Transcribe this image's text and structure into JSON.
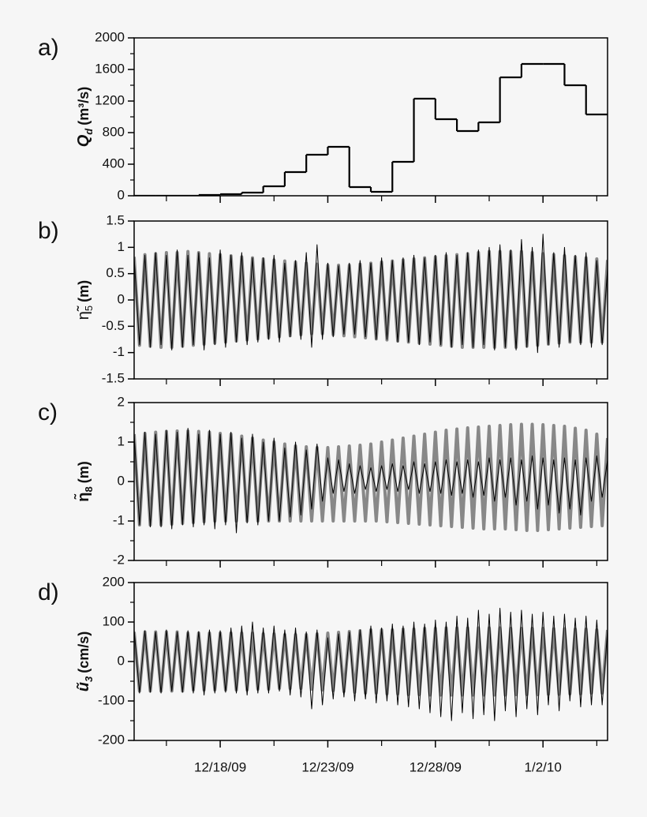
{
  "chart_data": [
    {
      "type": "step",
      "panel_label": "a)",
      "ylabel": {
        "symbol": "Q",
        "sub": "d",
        "unit": "(m³/s)"
      },
      "x": [
        0,
        1,
        2,
        3,
        4,
        5,
        6,
        7,
        8,
        9,
        10,
        11,
        12,
        13,
        14,
        15,
        16,
        17,
        18,
        19,
        20,
        21
      ],
      "values": [
        0,
        0,
        0,
        10,
        20,
        40,
        120,
        300,
        520,
        620,
        110,
        50,
        430,
        1230,
        970,
        820,
        930,
        1500,
        1670,
        1670,
        1400,
        1030
      ],
      "color": "#000000",
      "xlim": [
        0,
        22
      ],
      "xticks": [
        4,
        9,
        14,
        19
      ],
      "xminorticks": [
        1.5,
        6.5,
        11.5,
        16.5,
        21.5
      ],
      "ylim": [
        0,
        2000
      ],
      "yticks": [
        0,
        400,
        800,
        1200,
        1600,
        2000
      ],
      "yminorticks": [
        200,
        600,
        1000,
        1400,
        1800
      ]
    },
    {
      "type": "line",
      "panel_label": "b)",
      "ylabel": {
        "symbol": "η̃",
        "sub": "5",
        "unit": "(m)"
      },
      "x": [
        0,
        0.25,
        0.5,
        0.75,
        1,
        1.25,
        1.5,
        1.75,
        2,
        2.25,
        2.5,
        2.75,
        3,
        3.25,
        3.5,
        3.75,
        4,
        4.25,
        4.5,
        4.75,
        5,
        5.25,
        5.5,
        5.75,
        6,
        6.25,
        6.5,
        6.75,
        7,
        7.25,
        7.5,
        7.75,
        8,
        8.25,
        8.5,
        8.75,
        9,
        9.25,
        9.5,
        9.75,
        10,
        10.25,
        10.5,
        10.75,
        11,
        11.25,
        11.5,
        11.75,
        12,
        12.25,
        12.5,
        12.75,
        13,
        13.25,
        13.5,
        13.75,
        14,
        14.25,
        14.5,
        14.75,
        15,
        15.25,
        15.5,
        15.75,
        16,
        16.25,
        16.5,
        16.75,
        17,
        17.25,
        17.5,
        17.75,
        18,
        18.25,
        18.5,
        18.75,
        19,
        19.25,
        19.5,
        19.75,
        20,
        20.25,
        20.5,
        20.75,
        21,
        21.25,
        21.5,
        21.75,
        22
      ],
      "series": [
        {
          "color": "#888888",
          "width": 4,
          "values": [
            0.82,
            -0.86,
            0.86,
            -0.88,
            0.88,
            -0.9,
            0.9,
            -0.9,
            0.9,
            -0.88,
            0.92,
            -0.86,
            0.9,
            -0.84,
            0.88,
            -0.82,
            0.86,
            -0.8,
            0.84,
            -0.78,
            0.82,
            -0.76,
            0.8,
            -0.74,
            0.78,
            -0.72,
            0.76,
            -0.7,
            0.74,
            -0.68,
            0.72,
            -0.66,
            0.7,
            -0.64,
            0.68,
            -0.64,
            0.66,
            -0.66,
            0.66,
            -0.68,
            0.66,
            -0.7,
            0.68,
            -0.72,
            0.7,
            -0.74,
            0.72,
            -0.76,
            0.74,
            -0.78,
            0.76,
            -0.8,
            0.78,
            -0.82,
            0.8,
            -0.84,
            0.82,
            -0.86,
            0.84,
            -0.88,
            0.86,
            -0.9,
            0.88,
            -0.9,
            0.9,
            -0.9,
            0.92,
            -0.9,
            0.92,
            -0.9,
            0.92,
            -0.9,
            0.92,
            -0.88,
            0.9,
            -0.86,
            0.88,
            -0.84,
            0.86,
            -0.82,
            0.84,
            -0.8,
            0.82,
            -0.8,
            0.8,
            -0.8,
            0.78,
            -0.8,
            0.76
          ]
        },
        {
          "color": "#000000",
          "width": 1,
          "values": [
            0.8,
            -0.85,
            0.85,
            -0.9,
            0.9,
            -0.85,
            0.85,
            -0.95,
            0.95,
            -0.9,
            0.85,
            -0.85,
            0.9,
            -0.95,
            0.8,
            -0.85,
            0.95,
            -0.9,
            0.85,
            -0.8,
            0.9,
            -0.85,
            0.8,
            -0.8,
            0.8,
            -0.75,
            0.85,
            -0.8,
            0.7,
            -0.7,
            0.75,
            -0.75,
            0.9,
            -0.9,
            1.05,
            -0.75,
            0.7,
            -0.7,
            0.65,
            -0.65,
            0.7,
            -0.65,
            0.75,
            -0.7,
            0.7,
            -0.75,
            0.8,
            -0.75,
            0.75,
            -0.8,
            0.8,
            -0.8,
            0.85,
            -0.85,
            0.8,
            -0.8,
            0.85,
            -0.85,
            0.9,
            -0.9,
            0.85,
            -0.85,
            0.9,
            -0.9,
            0.95,
            -0.85,
            1.0,
            -0.95,
            1.05,
            -0.9,
            0.95,
            -0.95,
            1.15,
            -0.9,
            1.0,
            -1.0,
            1.25,
            -0.85,
            0.9,
            -0.9,
            1.0,
            -0.8,
            0.85,
            -0.85,
            0.9,
            -0.9,
            0.75,
            -0.85,
            0.6
          ]
        }
      ],
      "xlim": [
        0,
        22
      ],
      "xticks": [
        4,
        9,
        14,
        19
      ],
      "xminorticks": [
        1.5,
        6.5,
        11.5,
        16.5,
        21.5
      ],
      "ylim": [
        -1.5,
        1.5
      ],
      "yticks": [
        -1.5,
        -1,
        -0.5,
        0,
        0.5,
        1,
        1.5
      ],
      "yminorticks": []
    },
    {
      "type": "line",
      "panel_label": "c)",
      "ylabel": {
        "symbol": "η̃",
        "sub": "8",
        "unit": "(m)"
      },
      "x": [
        0,
        0.25,
        0.5,
        0.75,
        1,
        1.25,
        1.5,
        1.75,
        2,
        2.25,
        2.5,
        2.75,
        3,
        3.25,
        3.5,
        3.75,
        4,
        4.25,
        4.5,
        4.75,
        5,
        5.25,
        5.5,
        5.75,
        6,
        6.25,
        6.5,
        6.75,
        7,
        7.25,
        7.5,
        7.75,
        8,
        8.25,
        8.5,
        8.75,
        9,
        9.25,
        9.5,
        9.75,
        10,
        10.25,
        10.5,
        10.75,
        11,
        11.25,
        11.5,
        11.75,
        12,
        12.25,
        12.5,
        12.75,
        13,
        13.25,
        13.5,
        13.75,
        14,
        14.25,
        14.5,
        14.75,
        15,
        15.25,
        15.5,
        15.75,
        16,
        16.25,
        16.5,
        16.75,
        17,
        17.25,
        17.5,
        17.75,
        18,
        18.25,
        18.5,
        18.75,
        19,
        19.25,
        19.5,
        19.75,
        20,
        20.25,
        20.5,
        20.75,
        21,
        21.25,
        21.5,
        21.75,
        22
      ],
      "series": [
        {
          "color": "#888888",
          "width": 4,
          "values": [
            1.2,
            -1.1,
            1.22,
            -1.1,
            1.25,
            -1.1,
            1.27,
            -1.08,
            1.28,
            -1.06,
            1.28,
            -1.04,
            1.27,
            -1.02,
            1.25,
            -1,
            1.22,
            -1,
            1.2,
            -1,
            1.15,
            -1,
            1.1,
            -1,
            1.05,
            -1,
            1,
            -1,
            0.95,
            -1,
            0.9,
            -1,
            0.88,
            -1,
            0.86,
            -1,
            0.86,
            -1,
            0.88,
            -1,
            0.9,
            -1,
            0.92,
            -1,
            0.95,
            -1,
            1,
            -1.02,
            1.05,
            -1.04,
            1.1,
            -1.06,
            1.15,
            -1.08,
            1.2,
            -1.1,
            1.25,
            -1.12,
            1.3,
            -1.14,
            1.33,
            -1.16,
            1.36,
            -1.18,
            1.38,
            -1.2,
            1.4,
            -1.2,
            1.42,
            -1.2,
            1.44,
            -1.22,
            1.45,
            -1.24,
            1.45,
            -1.24,
            1.44,
            -1.22,
            1.42,
            -1.2,
            1.4,
            -1.18,
            1.35,
            -1.16,
            1.3,
            -1.14,
            1.2,
            -1.12,
            1.1
          ]
        },
        {
          "color": "#000000",
          "width": 1,
          "values": [
            1.2,
            -1.1,
            1.25,
            -1.15,
            1.2,
            -1.15,
            1.3,
            -1.2,
            1.25,
            -1.1,
            1.35,
            -1.15,
            1.2,
            -1.1,
            1.3,
            -1.2,
            1.2,
            -1.1,
            1.25,
            -1.3,
            1.1,
            -1.05,
            1.2,
            -1.1,
            1,
            -1,
            1.1,
            -1,
            0.85,
            -0.9,
            1,
            -0.85,
            0.8,
            -0.7,
            0.95,
            -0.5,
            0.6,
            -0.3,
            0.55,
            -0.25,
            0.45,
            -0.3,
            0.4,
            -0.2,
            0.35,
            -0.25,
            0.4,
            -0.2,
            0.45,
            -0.25,
            0.4,
            -0.2,
            0.5,
            -0.3,
            0.45,
            -0.25,
            0.5,
            -0.3,
            0.55,
            -0.35,
            0.5,
            -0.3,
            0.55,
            -0.4,
            0.5,
            -0.35,
            0.6,
            -0.5,
            0.55,
            -0.4,
            0.6,
            -0.6,
            0.55,
            -0.5,
            0.65,
            -0.7,
            0.6,
            -0.6,
            0.55,
            -0.8,
            0.6,
            -0.7,
            0.55,
            -0.85,
            0.6,
            -0.5,
            0.65,
            -0.4,
            0.55
          ]
        }
      ],
      "xlim": [
        0,
        22
      ],
      "xticks": [
        4,
        9,
        14,
        19
      ],
      "xminorticks": [
        1.5,
        6.5,
        11.5,
        16.5,
        21.5
      ],
      "ylim": [
        -2,
        2
      ],
      "yticks": [
        -2,
        -1,
        0,
        1,
        2
      ],
      "yminorticks": [
        -1.5,
        -0.5,
        0.5,
        1.5
      ]
    },
    {
      "type": "line",
      "panel_label": "d)",
      "ylabel": {
        "symbol": "ũ",
        "sub": "3",
        "unit": "(cm/s)"
      },
      "x": [
        0,
        0.25,
        0.5,
        0.75,
        1,
        1.25,
        1.5,
        1.75,
        2,
        2.25,
        2.5,
        2.75,
        3,
        3.25,
        3.5,
        3.75,
        4,
        4.25,
        4.5,
        4.75,
        5,
        5.25,
        5.5,
        5.75,
        6,
        6.25,
        6.5,
        6.75,
        7,
        7.25,
        7.5,
        7.75,
        8,
        8.25,
        8.5,
        8.75,
        9,
        9.25,
        9.5,
        9.75,
        10,
        10.25,
        10.5,
        10.75,
        11,
        11.25,
        11.5,
        11.75,
        12,
        12.25,
        12.5,
        12.75,
        13,
        13.25,
        13.5,
        13.75,
        14,
        14.25,
        14.5,
        14.75,
        15,
        15.25,
        15.5,
        15.75,
        16,
        16.25,
        16.5,
        16.75,
        17,
        17.25,
        17.5,
        17.75,
        18,
        18.25,
        18.5,
        18.75,
        19,
        19.25,
        19.5,
        19.75,
        20,
        20.25,
        20.5,
        20.75,
        21,
        21.25,
        21.5,
        21.75,
        22
      ],
      "series": [
        {
          "color": "#888888",
          "width": 4,
          "values": [
            75,
            -75,
            75,
            -75,
            75,
            -75,
            75,
            -75,
            75,
            -75,
            72,
            -72,
            72,
            -72,
            72,
            -72,
            72,
            -72,
            72,
            -72,
            72,
            -72,
            72,
            -70,
            70,
            -70,
            70,
            -68,
            68,
            -68,
            68,
            -68,
            68,
            -70,
            70,
            -72,
            72,
            -74,
            74,
            -76,
            76,
            -78,
            78,
            -80,
            80,
            -80,
            80,
            -82,
            80,
            -82,
            82,
            -84,
            82,
            -84,
            84,
            -85,
            84,
            -85,
            85,
            -85,
            85,
            -85,
            85,
            -85,
            85,
            -85,
            85,
            -85,
            85,
            -85,
            84,
            -84,
            84,
            -84,
            84,
            -84,
            84,
            -83,
            83,
            -83,
            83,
            -82,
            82,
            -82,
            82,
            -80,
            80,
            -80,
            80
          ]
        },
        {
          "color": "#000000",
          "width": 1,
          "values": [
            80,
            -80,
            78,
            -78,
            75,
            -80,
            80,
            -75,
            75,
            -78,
            78,
            -80,
            76,
            -85,
            80,
            -80,
            78,
            -78,
            85,
            -80,
            90,
            -85,
            100,
            -80,
            85,
            -80,
            90,
            -75,
            80,
            -85,
            85,
            -90,
            75,
            -120,
            80,
            -110,
            60,
            -95,
            70,
            -90,
            75,
            -100,
            80,
            -95,
            90,
            -105,
            85,
            -100,
            95,
            -110,
            90,
            -115,
            100,
            -120,
            95,
            -130,
            105,
            -140,
            100,
            -150,
            115,
            -130,
            110,
            -145,
            130,
            -135,
            120,
            -150,
            135,
            -125,
            125,
            -140,
            130,
            -120,
            120,
            -135,
            125,
            -110,
            115,
            -125,
            120,
            -100,
            110,
            -115,
            115,
            -110,
            105,
            -110,
            80
          ]
        }
      ],
      "xlim": [
        0,
        22
      ],
      "xticks": [
        {
          "value": 4,
          "label": "12/18/09"
        },
        {
          "value": 9,
          "label": "12/23/09"
        },
        {
          "value": 14,
          "label": "12/28/09"
        },
        {
          "value": 19,
          "label": "1/2/10"
        }
      ],
      "xminorticks": [
        1.5,
        6.5,
        11.5,
        16.5,
        21.5
      ],
      "ylim": [
        -200,
        200
      ],
      "yticks": [
        -200,
        -100,
        0,
        100,
        200
      ],
      "yminorticks": [
        -150,
        -50,
        50,
        150
      ]
    }
  ]
}
